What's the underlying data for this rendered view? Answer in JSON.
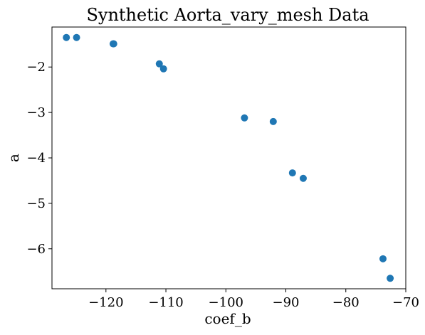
{
  "chart_data": {
    "type": "scatter",
    "title": "Synthetic Aorta_vary_mesh Data",
    "xlabel": "coef_b",
    "ylabel": "a",
    "xlim": [
      -129.0,
      -70.0
    ],
    "ylim": [
      -6.88,
      -1.12
    ],
    "xticks": [
      -120,
      -110,
      -100,
      -90,
      -80,
      -70
    ],
    "yticks": [
      -2,
      -3,
      -4,
      -5,
      -6
    ],
    "xtick_labels": [
      "−120",
      "−110",
      "−100",
      "−90",
      "−80",
      "−70"
    ],
    "ytick_labels": [
      "−2",
      "−3",
      "−4",
      "−5",
      "−6"
    ],
    "grid": false,
    "marker_color": "#1f77b4",
    "points": [
      {
        "x": -126.6,
        "y": -1.35
      },
      {
        "x": -124.9,
        "y": -1.35
      },
      {
        "x": -118.8,
        "y": -1.49
      },
      {
        "x": -118.7,
        "y": -1.49
      },
      {
        "x": -111.1,
        "y": -1.93
      },
      {
        "x": -110.4,
        "y": -2.04
      },
      {
        "x": -96.9,
        "y": -3.12
      },
      {
        "x": -92.1,
        "y": -3.2
      },
      {
        "x": -88.9,
        "y": -4.33
      },
      {
        "x": -87.1,
        "y": -4.45
      },
      {
        "x": -73.8,
        "y": -6.22
      },
      {
        "x": -72.6,
        "y": -6.65
      }
    ]
  }
}
